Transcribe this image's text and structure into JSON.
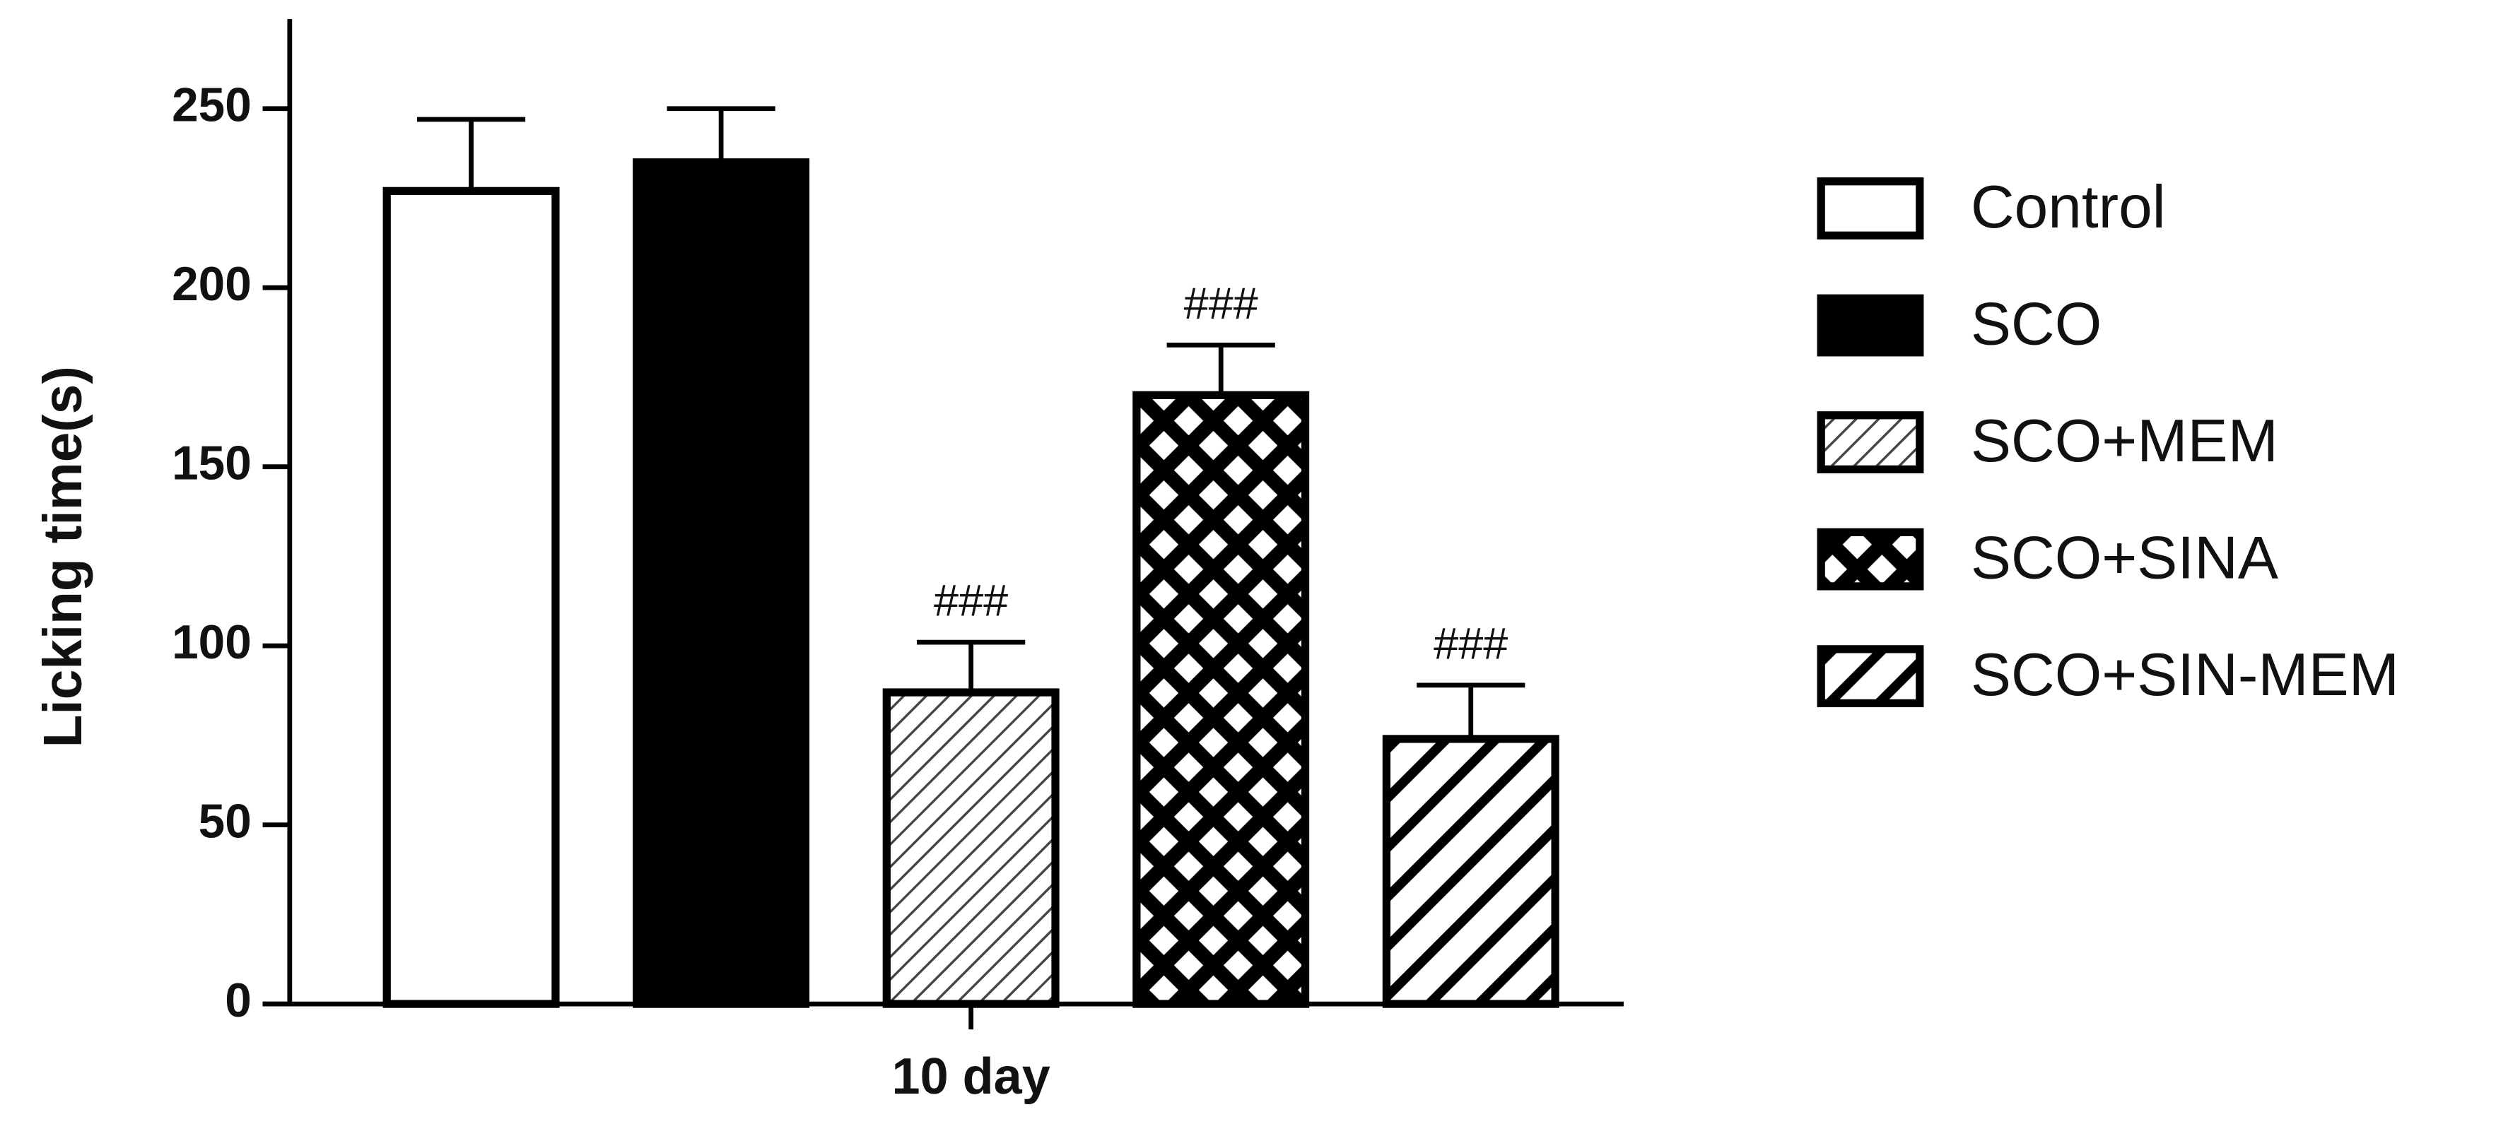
{
  "chart_data": {
    "type": "bar",
    "y_label": "Licking time(s)",
    "categories": [
      "10 day"
    ],
    "ylim": [
      0,
      275
    ],
    "yticks": [
      0,
      50,
      100,
      150,
      200,
      250
    ],
    "series": [
      {
        "name": "Control",
        "color": "#ffffff",
        "fill": "solid",
        "values": [
          227
        ],
        "errors": [
          20
        ]
      },
      {
        "name": "SCO",
        "color": "#000000",
        "fill": "solid",
        "values": [
          235
        ],
        "errors": [
          15
        ]
      },
      {
        "name": "SCO+MEM",
        "color": "#ffffff",
        "fill": "fine-hatch",
        "values": [
          87
        ],
        "errors": [
          14
        ],
        "annotation": "###"
      },
      {
        "name": "SCO+SINA",
        "color": "#000000",
        "fill": "crosshatch",
        "values": [
          170
        ],
        "errors": [
          14
        ],
        "annotation": "###"
      },
      {
        "name": "SCO+SIN-MEM",
        "color": "#ffffff",
        "fill": "diagonal",
        "values": [
          74
        ],
        "errors": [
          15
        ],
        "annotation": "###"
      }
    ],
    "legend": "right"
  }
}
